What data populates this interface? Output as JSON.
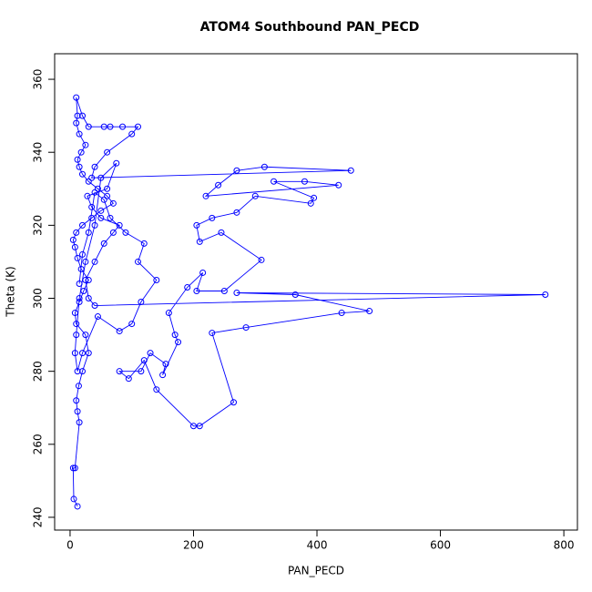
{
  "chart_data": {
    "type": "line",
    "title": "ATOM4 Southbound PAN_PECD",
    "xlabel": "PAN_PECD",
    "ylabel": "Theta (K)",
    "color": "#0000ff",
    "markers": true,
    "xlim": [
      -25,
      822
    ],
    "ylim": [
      236.5,
      367
    ],
    "xticks": [
      0,
      200,
      400,
      600,
      800
    ],
    "yticks": [
      240,
      260,
      280,
      300,
      320,
      340,
      360
    ],
    "x": [
      12,
      6,
      5,
      8,
      15,
      12,
      10,
      14,
      20,
      30,
      25,
      10,
      8,
      15,
      22,
      30,
      18,
      12,
      8,
      5,
      10,
      20,
      35,
      50,
      70,
      60,
      45,
      30,
      20,
      15,
      12,
      18,
      25,
      15,
      10,
      12,
      10,
      20,
      30,
      55,
      65,
      85,
      110,
      100,
      60,
      40,
      35,
      455,
      315,
      270,
      240,
      220,
      435,
      380,
      330,
      395,
      390,
      300,
      270,
      230,
      205,
      210,
      245,
      310,
      250,
      205,
      215,
      190,
      160,
      170,
      175,
      150,
      155,
      130,
      115,
      80,
      95,
      120,
      140,
      200,
      210,
      265,
      230,
      285,
      440,
      485,
      365,
      270,
      770,
      40,
      30,
      25,
      40,
      55,
      70,
      80,
      50,
      35,
      28,
      60,
      75,
      50,
      40,
      25,
      15,
      10,
      8,
      12,
      20,
      45,
      80,
      100,
      115,
      140,
      110,
      120,
      90,
      65,
      55,
      40,
      30,
      20,
      15
    ],
    "values": [
      243,
      245,
      253.5,
      253.5,
      266,
      269,
      272,
      276,
      280,
      285,
      290,
      293,
      296,
      299,
      302,
      305,
      308,
      311,
      314,
      316,
      318,
      320,
      322,
      324,
      326,
      328,
      330,
      332,
      334,
      336,
      338,
      340,
      342,
      345,
      348,
      350,
      355,
      350,
      347,
      347,
      347,
      347,
      347,
      345,
      340,
      336,
      333,
      335,
      336,
      335,
      331,
      328,
      331,
      332,
      332,
      327.5,
      326,
      328,
      323.5,
      322,
      320,
      315.5,
      318,
      310.5,
      302,
      302,
      307,
      303,
      296,
      290,
      288,
      279,
      282,
      285,
      280,
      280,
      278,
      283,
      275,
      265,
      265,
      271.5,
      290.5,
      292,
      296,
      296.5,
      301,
      301.5,
      301,
      298,
      300,
      305,
      310,
      315,
      318,
      320,
      322,
      325,
      328,
      330,
      337,
      333,
      320,
      310,
      300,
      290,
      285,
      280,
      285,
      295,
      291,
      293,
      299,
      305,
      310,
      315,
      318,
      322,
      327,
      329,
      318,
      312,
      304
    ]
  }
}
